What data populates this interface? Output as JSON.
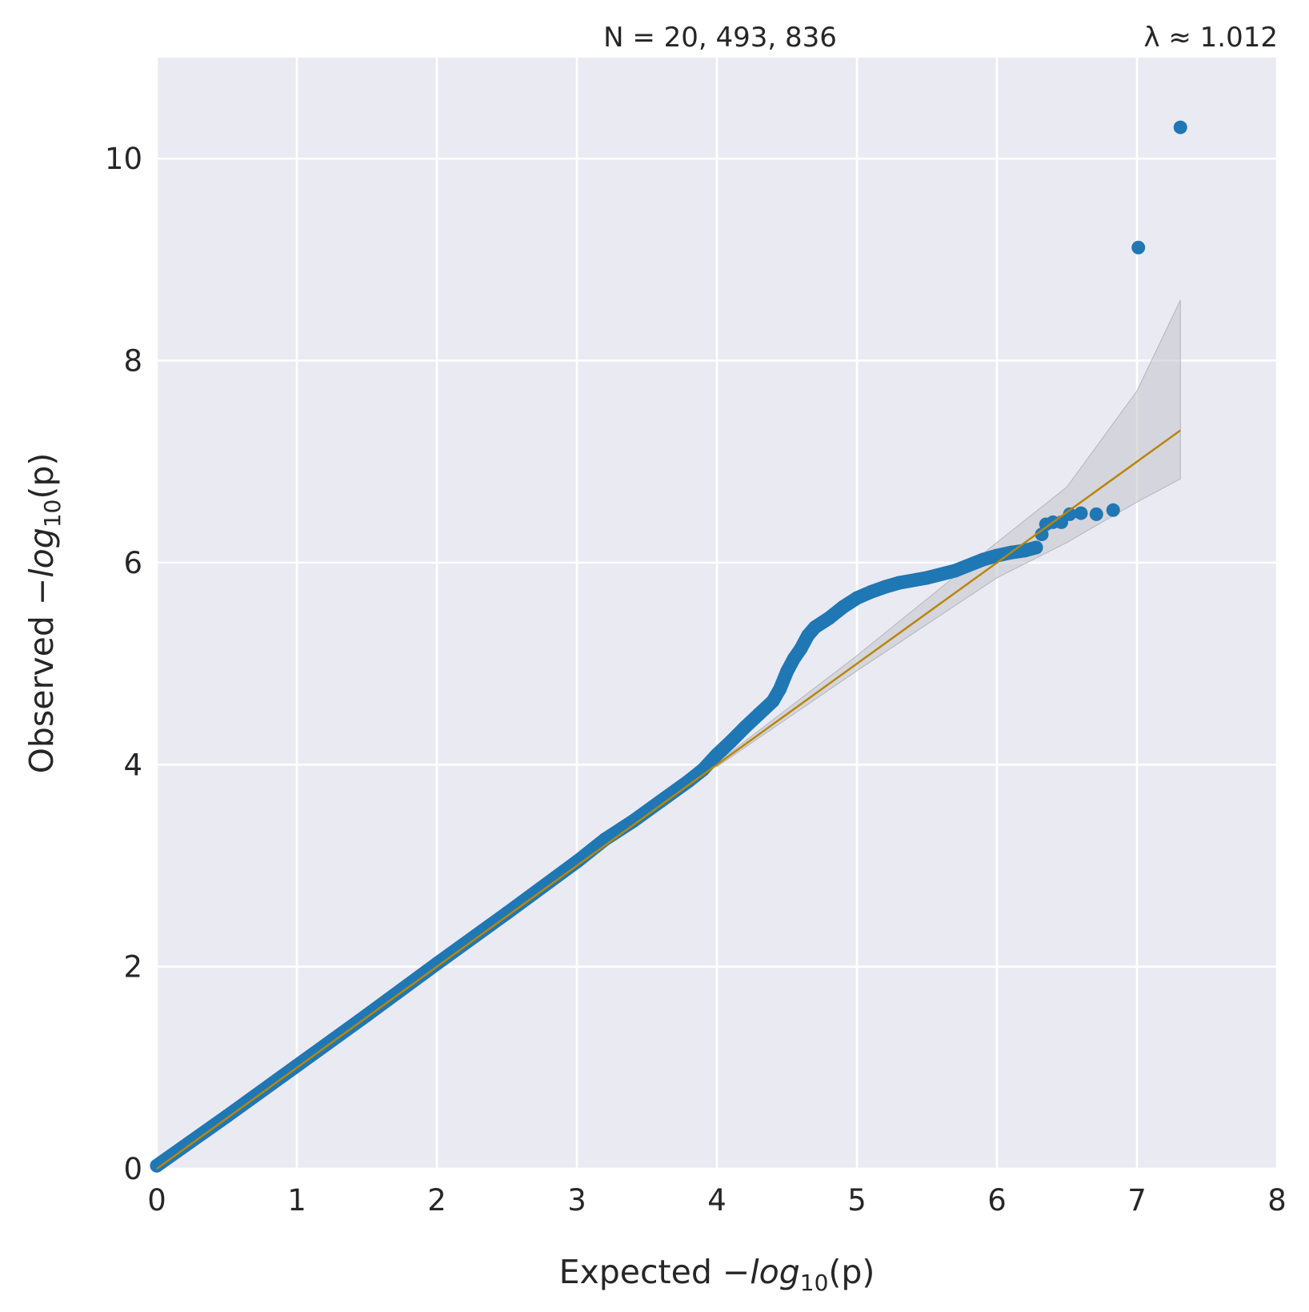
{
  "chart_data": {
    "type": "scatter",
    "title": "",
    "annotations": {
      "n_label": "N = 20, 493, 836",
      "lambda_label": "λ ≈ 1.012"
    },
    "xlabel": {
      "prefix": "Expected −",
      "log": "log",
      "sub": "10",
      "suffix": "(p)"
    },
    "ylabel": {
      "prefix": "Observed −",
      "log": "log",
      "sub": "10",
      "suffix": "(p)"
    },
    "xlim": [
      0,
      8
    ],
    "ylim": [
      0,
      11
    ],
    "x_ticks": [
      "0",
      "1",
      "2",
      "3",
      "4",
      "5",
      "6",
      "7",
      "8"
    ],
    "y_ticks": [
      "0",
      "2",
      "4",
      "6",
      "8",
      "10"
    ],
    "grid": true,
    "background": "#eaeaf2",
    "series": [
      {
        "type": "points",
        "color": "#1f77b4",
        "points": [
          [
            0.0,
            0.03
          ],
          [
            0.5,
            0.52
          ],
          [
            1.0,
            1.02
          ],
          [
            1.5,
            1.52
          ],
          [
            2.0,
            2.03
          ],
          [
            2.5,
            2.53
          ],
          [
            3.0,
            3.04
          ],
          [
            3.2,
            3.26
          ],
          [
            3.4,
            3.44
          ],
          [
            3.6,
            3.64
          ],
          [
            3.8,
            3.84
          ],
          [
            3.9,
            3.95
          ],
          [
            4.0,
            4.1
          ],
          [
            4.1,
            4.23
          ],
          [
            4.2,
            4.37
          ],
          [
            4.3,
            4.5
          ],
          [
            4.4,
            4.63
          ],
          [
            4.45,
            4.75
          ],
          [
            4.5,
            4.92
          ],
          [
            4.55,
            5.05
          ],
          [
            4.6,
            5.15
          ],
          [
            4.65,
            5.28
          ],
          [
            4.7,
            5.36
          ],
          [
            4.8,
            5.45
          ],
          [
            4.9,
            5.56
          ],
          [
            5.0,
            5.65
          ],
          [
            5.1,
            5.71
          ],
          [
            5.2,
            5.76
          ],
          [
            5.3,
            5.8
          ],
          [
            5.5,
            5.85
          ],
          [
            5.7,
            5.92
          ],
          [
            5.9,
            6.03
          ],
          [
            6.0,
            6.07
          ],
          [
            6.1,
            6.1
          ],
          [
            6.2,
            6.12
          ],
          [
            6.28,
            6.15
          ],
          [
            6.32,
            6.28
          ],
          [
            6.35,
            6.38
          ],
          [
            6.4,
            6.4
          ],
          [
            6.46,
            6.4
          ],
          [
            6.52,
            6.48
          ],
          [
            6.6,
            6.49
          ],
          [
            6.71,
            6.48
          ],
          [
            6.83,
            6.52
          ],
          [
            7.01,
            9.12
          ],
          [
            7.31,
            10.31
          ]
        ]
      },
      {
        "type": "line",
        "name": "",
        "color": "#b8860b",
        "x": [
          0,
          7.31
        ],
        "y": [
          0,
          7.31
        ]
      },
      {
        "type": "band",
        "color": "#c0c0c8",
        "x": [
          4.0,
          5.0,
          6.0,
          6.5,
          7.0,
          7.31
        ],
        "lower": [
          3.98,
          4.93,
          5.85,
          6.2,
          6.6,
          6.83
        ],
        "upper": [
          4.02,
          5.08,
          6.2,
          6.75,
          7.7,
          8.6
        ]
      }
    ]
  }
}
